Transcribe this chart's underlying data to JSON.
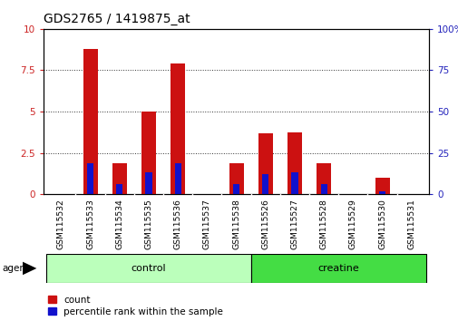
{
  "title": "GDS2765 / 1419875_at",
  "categories": [
    "GSM115532",
    "GSM115533",
    "GSM115534",
    "GSM115535",
    "GSM115536",
    "GSM115537",
    "GSM115538",
    "GSM115526",
    "GSM115527",
    "GSM115528",
    "GSM115529",
    "GSM115530",
    "GSM115531"
  ],
  "count_values": [
    0.0,
    8.8,
    1.85,
    5.0,
    7.9,
    0.0,
    1.9,
    3.7,
    3.75,
    1.85,
    0.0,
    1.0,
    0.0
  ],
  "percentile_values": [
    0.0,
    19.0,
    6.0,
    13.0,
    19.0,
    0.0,
    6.0,
    12.0,
    13.0,
    6.0,
    0.0,
    2.0,
    0.0
  ],
  "groups": [
    {
      "label": "control",
      "start": 0,
      "end": 7,
      "color": "#bbffbb"
    },
    {
      "label": "creatine",
      "start": 7,
      "end": 13,
      "color": "#44dd44"
    }
  ],
  "ylim_left": [
    0,
    10
  ],
  "ylim_right": [
    0,
    100
  ],
  "yticks_left": [
    0,
    2.5,
    5,
    7.5,
    10
  ],
  "yticks_right": [
    0,
    25,
    50,
    75,
    100
  ],
  "bar_color_red": "#cc1111",
  "bar_color_blue": "#1111cc",
  "bar_width": 0.5,
  "background_color": "#ffffff",
  "tick_label_color_left": "#cc2222",
  "tick_label_color_right": "#2222bb",
  "grid_color": "#333333",
  "xlabel_area_color": "#c8c8c8",
  "legend_count_label": "count",
  "legend_percentile_label": "percentile rank within the sample",
  "agent_label": "agent",
  "title_fontsize": 10,
  "tick_fontsize": 7
}
